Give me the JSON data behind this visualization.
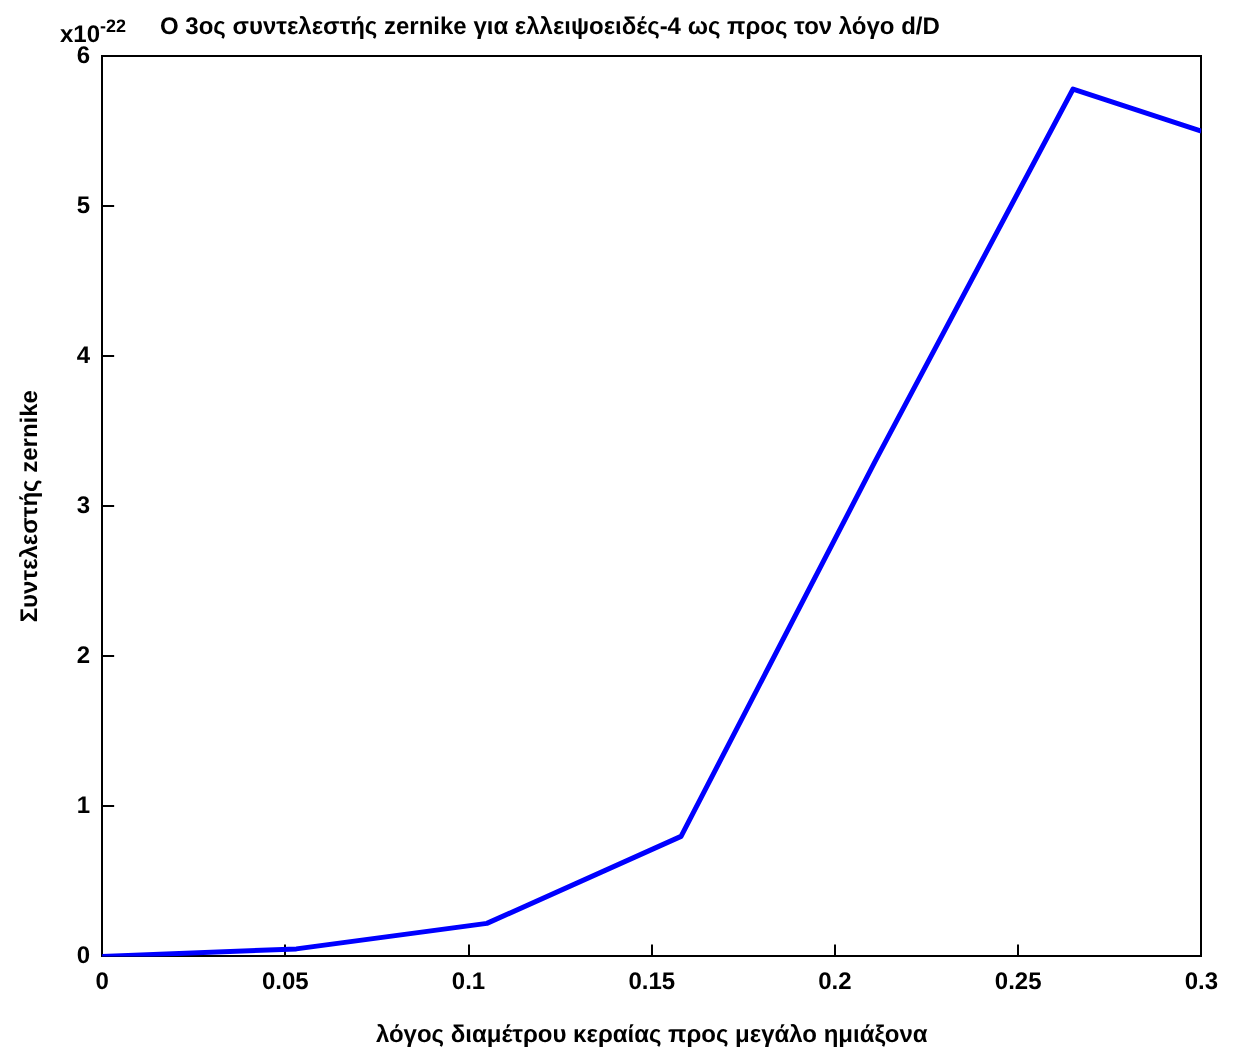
{
  "chart_data": {
    "type": "line",
    "title": "Ο 3ος συντελεστής zernike για ελλειψοειδές-4 ως προς τον λόγο d/D",
    "xlabel": "λόγος διαμέτρου κεραίας προς μεγάλο ημιάξονα",
    "ylabel": "Συντελεστής zernike",
    "annotations": [
      "x10$^{-22}$"
    ],
    "x": [
      0,
      0.053,
      0.105,
      0.158,
      0.211,
      0.265,
      0.3
    ],
    "series": [
      {
        "color": "#0000ff",
        "values": [
          0,
          0.05,
          0.22,
          0.8,
          3.3,
          5.78,
          5.5
        ]
      }
    ],
    "xlim": [
      0,
      0.3
    ],
    "xticks": [
      0,
      0.05,
      0.1,
      0.15,
      0.2,
      0.25,
      0.3
    ],
    "ylim": [
      0,
      6
    ],
    "yticks": [
      0,
      1,
      2,
      3,
      4,
      5,
      6
    ],
    "grid": false,
    "legend": false,
    "marker": "none",
    "line_style": "solid"
  }
}
